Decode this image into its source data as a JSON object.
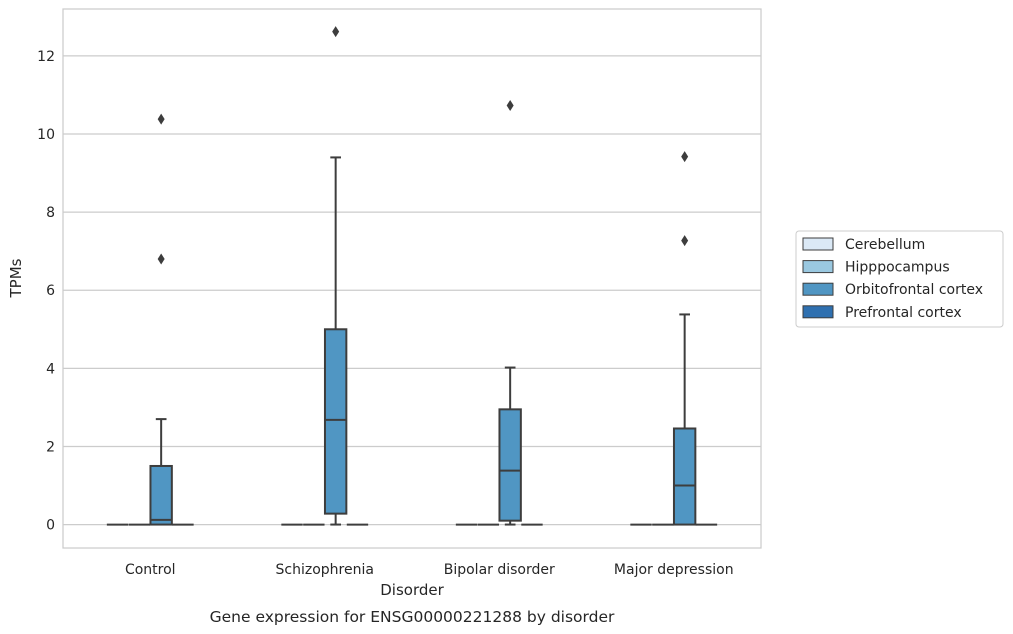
{
  "chart_data": {
    "type": "box",
    "title": "Gene expression for ENSG00000221288 by disorder",
    "xlabel": "Disorder",
    "ylabel": "TPMs",
    "ylim": [
      -0.6,
      13.2
    ],
    "yticks": [
      0,
      2,
      4,
      6,
      8,
      10,
      12
    ],
    "grid": true,
    "legend_position": "right",
    "categories": [
      "Control",
      "Schizophrenia",
      "Bipolar disorder",
      "Major depression"
    ],
    "series": [
      {
        "name": "Cerebellum",
        "color": "#dbe9f6",
        "boxes": [
          {
            "q1": 0,
            "median": 0,
            "q3": 0,
            "whisker_low": 0,
            "whisker_high": 0,
            "outliers": []
          },
          {
            "q1": 0,
            "median": 0,
            "q3": 0,
            "whisker_low": 0,
            "whisker_high": 0,
            "outliers": []
          },
          {
            "q1": 0,
            "median": 0,
            "q3": 0,
            "whisker_low": 0,
            "whisker_high": 0,
            "outliers": []
          },
          {
            "q1": 0,
            "median": 0,
            "q3": 0,
            "whisker_low": 0,
            "whisker_high": 0,
            "outliers": []
          }
        ]
      },
      {
        "name": "Hipppocampus",
        "color": "#9ac8e0",
        "boxes": [
          {
            "q1": 0,
            "median": 0,
            "q3": 0,
            "whisker_low": 0,
            "whisker_high": 0,
            "outliers": []
          },
          {
            "q1": 0,
            "median": 0,
            "q3": 0,
            "whisker_low": 0,
            "whisker_high": 0,
            "outliers": []
          },
          {
            "q1": 0,
            "median": 0,
            "q3": 0,
            "whisker_low": 0,
            "whisker_high": 0,
            "outliers": []
          },
          {
            "q1": 0,
            "median": 0,
            "q3": 0,
            "whisker_low": 0,
            "whisker_high": 0,
            "outliers": []
          }
        ]
      },
      {
        "name": "Orbitofrontal cortex",
        "color": "#5096c3",
        "boxes": [
          {
            "q1": 0.0,
            "median": 0.12,
            "q3": 1.5,
            "whisker_low": 0,
            "whisker_high": 2.7,
            "outliers": [
              6.8,
              10.38
            ]
          },
          {
            "q1": 0.28,
            "median": 2.68,
            "q3": 5.0,
            "whisker_low": 0,
            "whisker_high": 9.4,
            "outliers": [
              12.62
            ]
          },
          {
            "q1": 0.1,
            "median": 1.38,
            "q3": 2.95,
            "whisker_low": 0,
            "whisker_high": 4.02,
            "outliers": [
              10.73
            ]
          },
          {
            "q1": 0.0,
            "median": 1.0,
            "q3": 2.46,
            "whisker_low": 0,
            "whisker_high": 5.38,
            "outliers": [
              7.27,
              9.42
            ]
          }
        ]
      },
      {
        "name": "Prefrontal cortex",
        "color": "#2f70b0",
        "boxes": [
          {
            "q1": 0,
            "median": 0,
            "q3": 0,
            "whisker_low": 0,
            "whisker_high": 0,
            "outliers": []
          },
          {
            "q1": 0,
            "median": 0,
            "q3": 0,
            "whisker_low": 0,
            "whisker_high": 0,
            "outliers": []
          },
          {
            "q1": 0,
            "median": 0,
            "q3": 0,
            "whisker_low": 0,
            "whisker_high": 0,
            "outliers": []
          },
          {
            "q1": 0,
            "median": 0,
            "q3": 0,
            "whisker_low": 0,
            "whisker_high": 0,
            "outliers": []
          }
        ]
      }
    ]
  }
}
